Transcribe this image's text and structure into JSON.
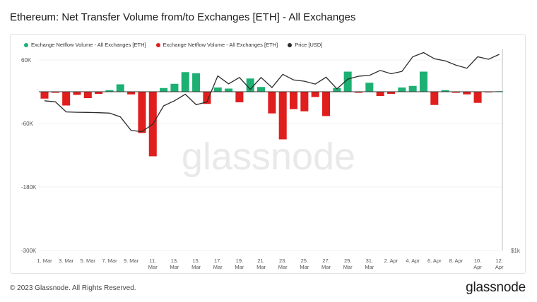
{
  "title": "Ethereum: Net Transfer Volume from/to Exchanges [ETH] - All Exchanges",
  "copyright": "© 2023 Glassnode. All Rights Reserved.",
  "brand": "glassnode",
  "watermark": "glassnode",
  "colors": {
    "positive": "#1db073",
    "negative": "#e01e1e",
    "price": "#2b2b2b",
    "grid": "#f0f0f0",
    "axis_text": "#555555"
  },
  "legend": [
    {
      "label": "Exchange Netflow Volume - All Exchanges [ETH]",
      "color": "#1db073"
    },
    {
      "label": "Exchange Netflow Volume - All Exchanges [ETH]",
      "color": "#e01e1e"
    },
    {
      "label": "Price [USD]",
      "color": "#2b2b2b"
    }
  ],
  "chart_data": {
    "type": "bar",
    "title": "Ethereum: Net Transfer Volume from/to Exchanges [ETH] - All Exchanges",
    "categories": [
      "1 Mar",
      "2 Mar",
      "3 Mar",
      "4 Mar",
      "5 Mar",
      "6 Mar",
      "7 Mar",
      "8 Mar",
      "9 Mar",
      "10 Mar",
      "11 Mar",
      "12 Mar",
      "13 Mar",
      "14 Mar",
      "15 Mar",
      "16 Mar",
      "17 Mar",
      "18 Mar",
      "19 Mar",
      "20 Mar",
      "21 Mar",
      "22 Mar",
      "23 Mar",
      "24 Mar",
      "25 Mar",
      "26 Mar",
      "27 Mar",
      "28 Mar",
      "29 Mar",
      "30 Mar",
      "31 Mar",
      "1 Apr",
      "2 Apr",
      "3 Apr",
      "4 Apr",
      "5 Apr",
      "6 Apr",
      "7 Apr",
      "8 Apr",
      "9 Apr",
      "10 Apr",
      "11 Apr",
      "12 Apr"
    ],
    "x_tick_labels": [
      "1. Mar",
      "3. Mar",
      "5. Mar",
      "7. Mar",
      "9. Mar",
      "11.\nMar",
      "13.\nMar",
      "15.\nMar",
      "17.\nMar",
      "19.\nMar",
      "21.\nMar",
      "23.\nMar",
      "25.\nMar",
      "27.\nMar",
      "29.\nMar",
      "31.\nMar",
      "2. Apr",
      "4. Apr",
      "6. Apr",
      "8. Apr",
      "10.\nApr",
      "12.\nApr"
    ],
    "series": [
      {
        "name": "Exchange Netflow Volume - All Exchanges [ETH]",
        "values": [
          -13000,
          -2000,
          -26000,
          -6000,
          -12000,
          -4000,
          3000,
          14000,
          -5000,
          -78000,
          -122000,
          7000,
          15000,
          37000,
          35000,
          -23000,
          8000,
          6000,
          -20000,
          25000,
          9000,
          -41000,
          -90000,
          -33000,
          -37000,
          -10000,
          -46000,
          7000,
          38000,
          -2000,
          17000,
          -8000,
          -4000,
          8000,
          11000,
          38000,
          -25000,
          3000,
          -2000,
          -5000,
          -21000,
          -1000,
          1000
        ]
      },
      {
        "name": "Price [USD]",
        "axis": "right",
        "values": [
          1645,
          1638,
          1568,
          1566,
          1565,
          1563,
          1560,
          1534,
          1440,
          1432,
          1484,
          1610,
          1645,
          1690,
          1618,
          1637,
          1817,
          1762,
          1806,
          1724,
          1806,
          1737,
          1828,
          1789,
          1780,
          1760,
          1808,
          1727,
          1795,
          1815,
          1820,
          1855,
          1832,
          1848,
          1949,
          1978,
          1935,
          1921,
          1891,
          1870,
          1949,
          1932,
          1966
        ]
      }
    ],
    "ylim": [
      -300000,
      80000
    ],
    "y_ticks": [
      {
        "value": 60000,
        "label": "60K"
      },
      {
        "value": -60000,
        "label": "-60K"
      },
      {
        "value": -180000,
        "label": "-180K"
      },
      {
        "value": -300000,
        "label": "-300K"
      }
    ],
    "right_axis_label": "$1k",
    "grid": true,
    "legend_position": "top-left"
  }
}
